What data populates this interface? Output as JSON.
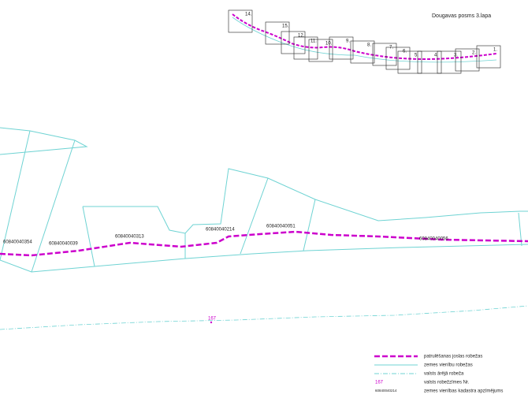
{
  "header": {
    "title": "Dougavas posms 3.lapa"
  },
  "index_sheets": [
    "14.",
    "15.",
    "12.",
    "11.",
    "10.",
    "9.",
    "8.",
    "7.",
    "6.",
    "5.",
    "4.",
    "3.",
    "2.",
    "1."
  ],
  "parcels": [
    "60840040354",
    "60840040039",
    "60840040313",
    "60840040214",
    "60840040051",
    "60840040056"
  ],
  "border_marker": "167",
  "legend": [
    {
      "label": "patrulēšanas joslas robežas"
    },
    {
      "label": "zemes vienību robežas"
    },
    {
      "label": "valsts ārējā robeža"
    },
    {
      "symbol": "167",
      "label": "valsts robežzīmes Nr."
    },
    {
      "symbol": "60840040214",
      "label": "zemes vienības kadastra apzīmējums"
    }
  ]
}
